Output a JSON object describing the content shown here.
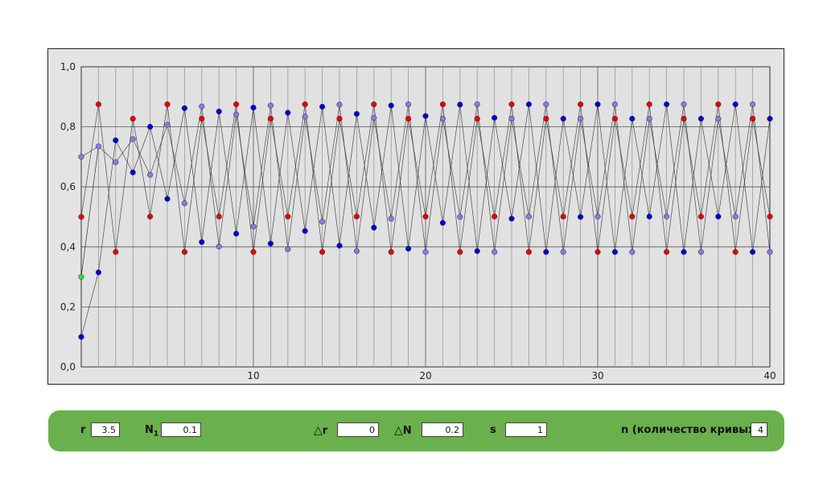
{
  "chart_data": {
    "type": "scatter",
    "xlim": [
      0,
      40
    ],
    "ylim": [
      0,
      1
    ],
    "x_ticks": [
      "10",
      "20",
      "30",
      "40"
    ],
    "y_ticks": [
      "0,0",
      "0,2",
      "0,4",
      "0,6",
      "0,8",
      "1,0"
    ],
    "grid": true,
    "series": [
      {
        "color": "#ee0000",
        "values": [
          0.5,
          0.875,
          0.383,
          0.827,
          0.501,
          0.875,
          0.383,
          0.827,
          0.501,
          0.875,
          0.383,
          0.827,
          0.501,
          0.875,
          0.383,
          0.827,
          0.501,
          0.875,
          0.383,
          0.827,
          0.501,
          0.875,
          0.383,
          0.827,
          0.501,
          0.875,
          0.383,
          0.827,
          0.501,
          0.875,
          0.383,
          0.827,
          0.501,
          0.875,
          0.383,
          0.827,
          0.501,
          0.875,
          0.383,
          0.827,
          0.501
        ]
      },
      {
        "color": "#7f7fe6",
        "values": [
          0.7,
          0.735,
          0.682,
          0.759,
          0.64,
          0.807,
          0.545,
          0.868,
          0.401,
          0.841,
          0.468,
          0.871,
          0.392,
          0.834,
          0.484,
          0.874,
          0.386,
          0.83,
          0.494,
          0.875,
          0.383,
          0.827,
          0.5,
          0.875,
          0.383,
          0.827,
          0.501,
          0.875,
          0.383,
          0.827,
          0.501,
          0.875,
          0.383,
          0.827,
          0.501,
          0.875,
          0.383,
          0.827,
          0.501,
          0.875,
          0.383
        ]
      },
      {
        "color": "#0000dd",
        "values": [
          0.1,
          0.315,
          0.755,
          0.648,
          0.8,
          0.56,
          0.862,
          0.416,
          0.851,
          0.444,
          0.864,
          0.411,
          0.847,
          0.453,
          0.867,
          0.404,
          0.843,
          0.464,
          0.871,
          0.394,
          0.836,
          0.48,
          0.874,
          0.386,
          0.83,
          0.494,
          0.875,
          0.383,
          0.827,
          0.5,
          0.875,
          0.383,
          0.827,
          0.501,
          0.875,
          0.383,
          0.827,
          0.501,
          0.875,
          0.383,
          0.827
        ]
      }
    ],
    "initial_point": {
      "x": 0,
      "y": 0.3,
      "color": "#33dd33"
    }
  },
  "controls": {
    "r_label": "r",
    "r_value": "3.5",
    "n1_label": "N",
    "n1_sub": "1",
    "n1_value": "0.1",
    "dr_symbol": "△",
    "dr_label": "r",
    "dr_value": "0",
    "dn_symbol": "△",
    "dn_label": "N",
    "dn_value": "0.2",
    "s_label": "s",
    "s_value": "1",
    "n_label": "n (количество кривых):",
    "n_value": "4"
  }
}
